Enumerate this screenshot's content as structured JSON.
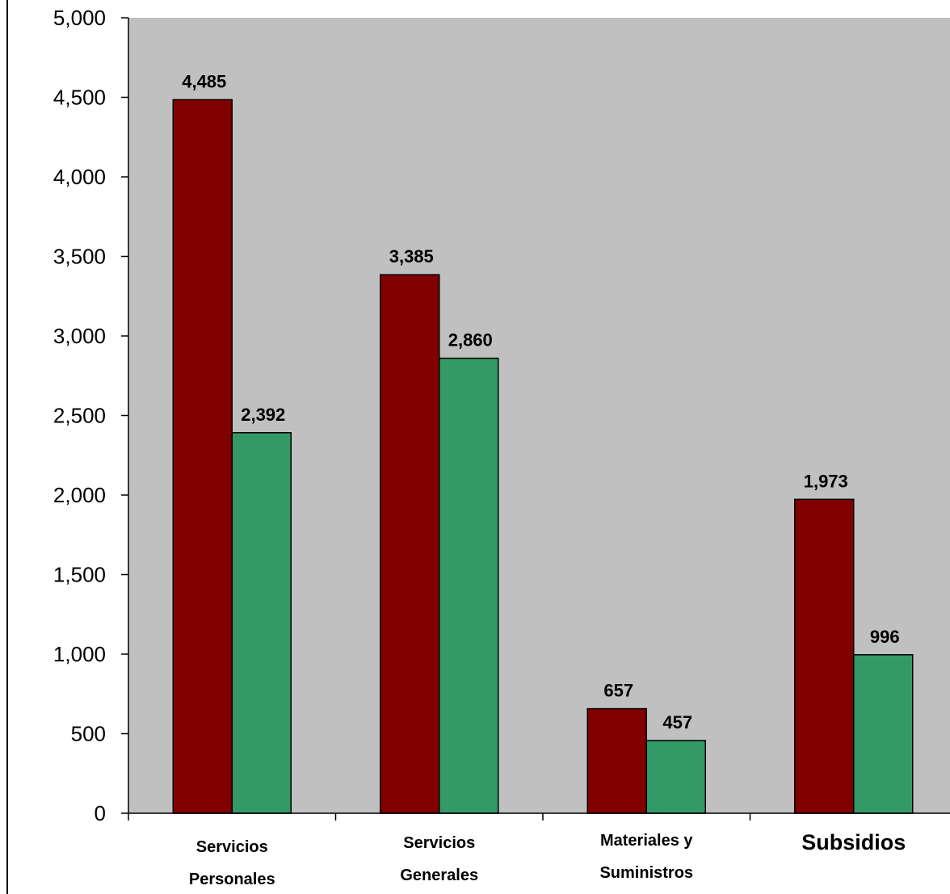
{
  "chart_data": {
    "type": "bar",
    "title": "",
    "xlabel": "",
    "ylabel": "",
    "ylim": [
      0,
      5000
    ],
    "yticks": [
      0,
      500,
      1000,
      1500,
      2000,
      2500,
      3000,
      3500,
      4000,
      4500,
      5000
    ],
    "ytick_labels": [
      "0",
      "500",
      "1,000",
      "1,500",
      "2,000",
      "2,500",
      "3,000",
      "3,500",
      "4,000",
      "4,500",
      "5,000"
    ],
    "categories": [
      {
        "lines": [
          "Servicios",
          "Personales"
        ],
        "emphasis": false
      },
      {
        "lines": [
          "Servicios",
          "Generales"
        ],
        "emphasis": false
      },
      {
        "lines": [
          "Materiales y",
          "Suministros"
        ],
        "emphasis": false
      },
      {
        "lines": [
          "Subsidios"
        ],
        "emphasis": true
      }
    ],
    "series": [
      {
        "color": "#800000",
        "values": [
          4485,
          3385,
          657,
          1973
        ],
        "labels": [
          "4,485",
          "3,385",
          "657",
          "1,973"
        ]
      },
      {
        "color": "#339966",
        "values": [
          2392,
          2860,
          457,
          996
        ],
        "labels": [
          "2,392",
          "2,860",
          "457",
          "996"
        ]
      }
    ],
    "grid": false,
    "legend": "none",
    "plot_background": "#c0c0c0"
  }
}
